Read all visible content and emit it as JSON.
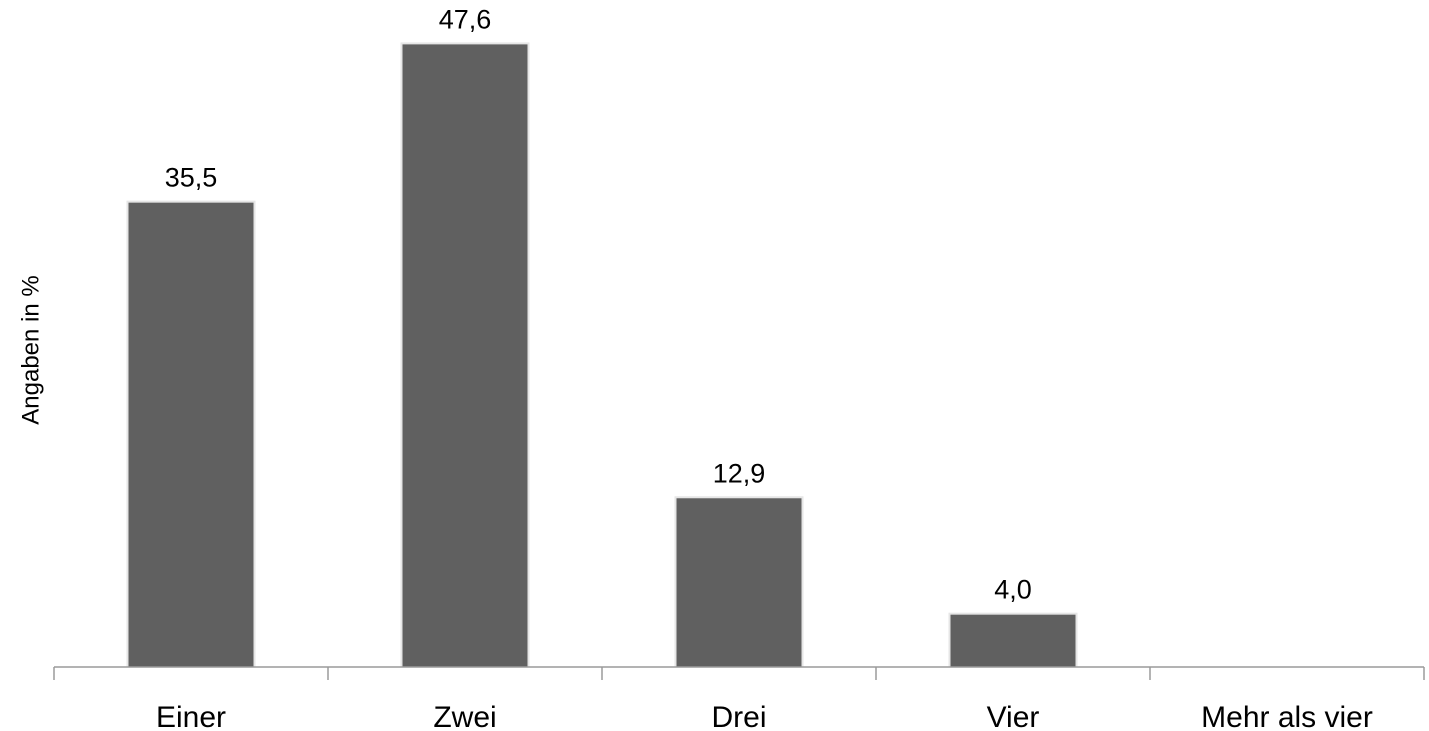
{
  "chart_data": {
    "type": "bar",
    "categories": [
      "Einer",
      "Zwei",
      "Drei",
      "Vier",
      "Mehr als vier"
    ],
    "values": [
      35.5,
      47.6,
      12.9,
      4.0,
      null
    ],
    "data_labels": [
      "35,5",
      "47,6",
      "12,9",
      "4,0",
      ""
    ],
    "title": "",
    "xlabel": "",
    "ylabel": "Angaben in %",
    "ylim": [
      0,
      50
    ],
    "grid": false,
    "legend": "none",
    "colors": {
      "bar": "#606060",
      "axis": "#9a9a9a"
    }
  }
}
